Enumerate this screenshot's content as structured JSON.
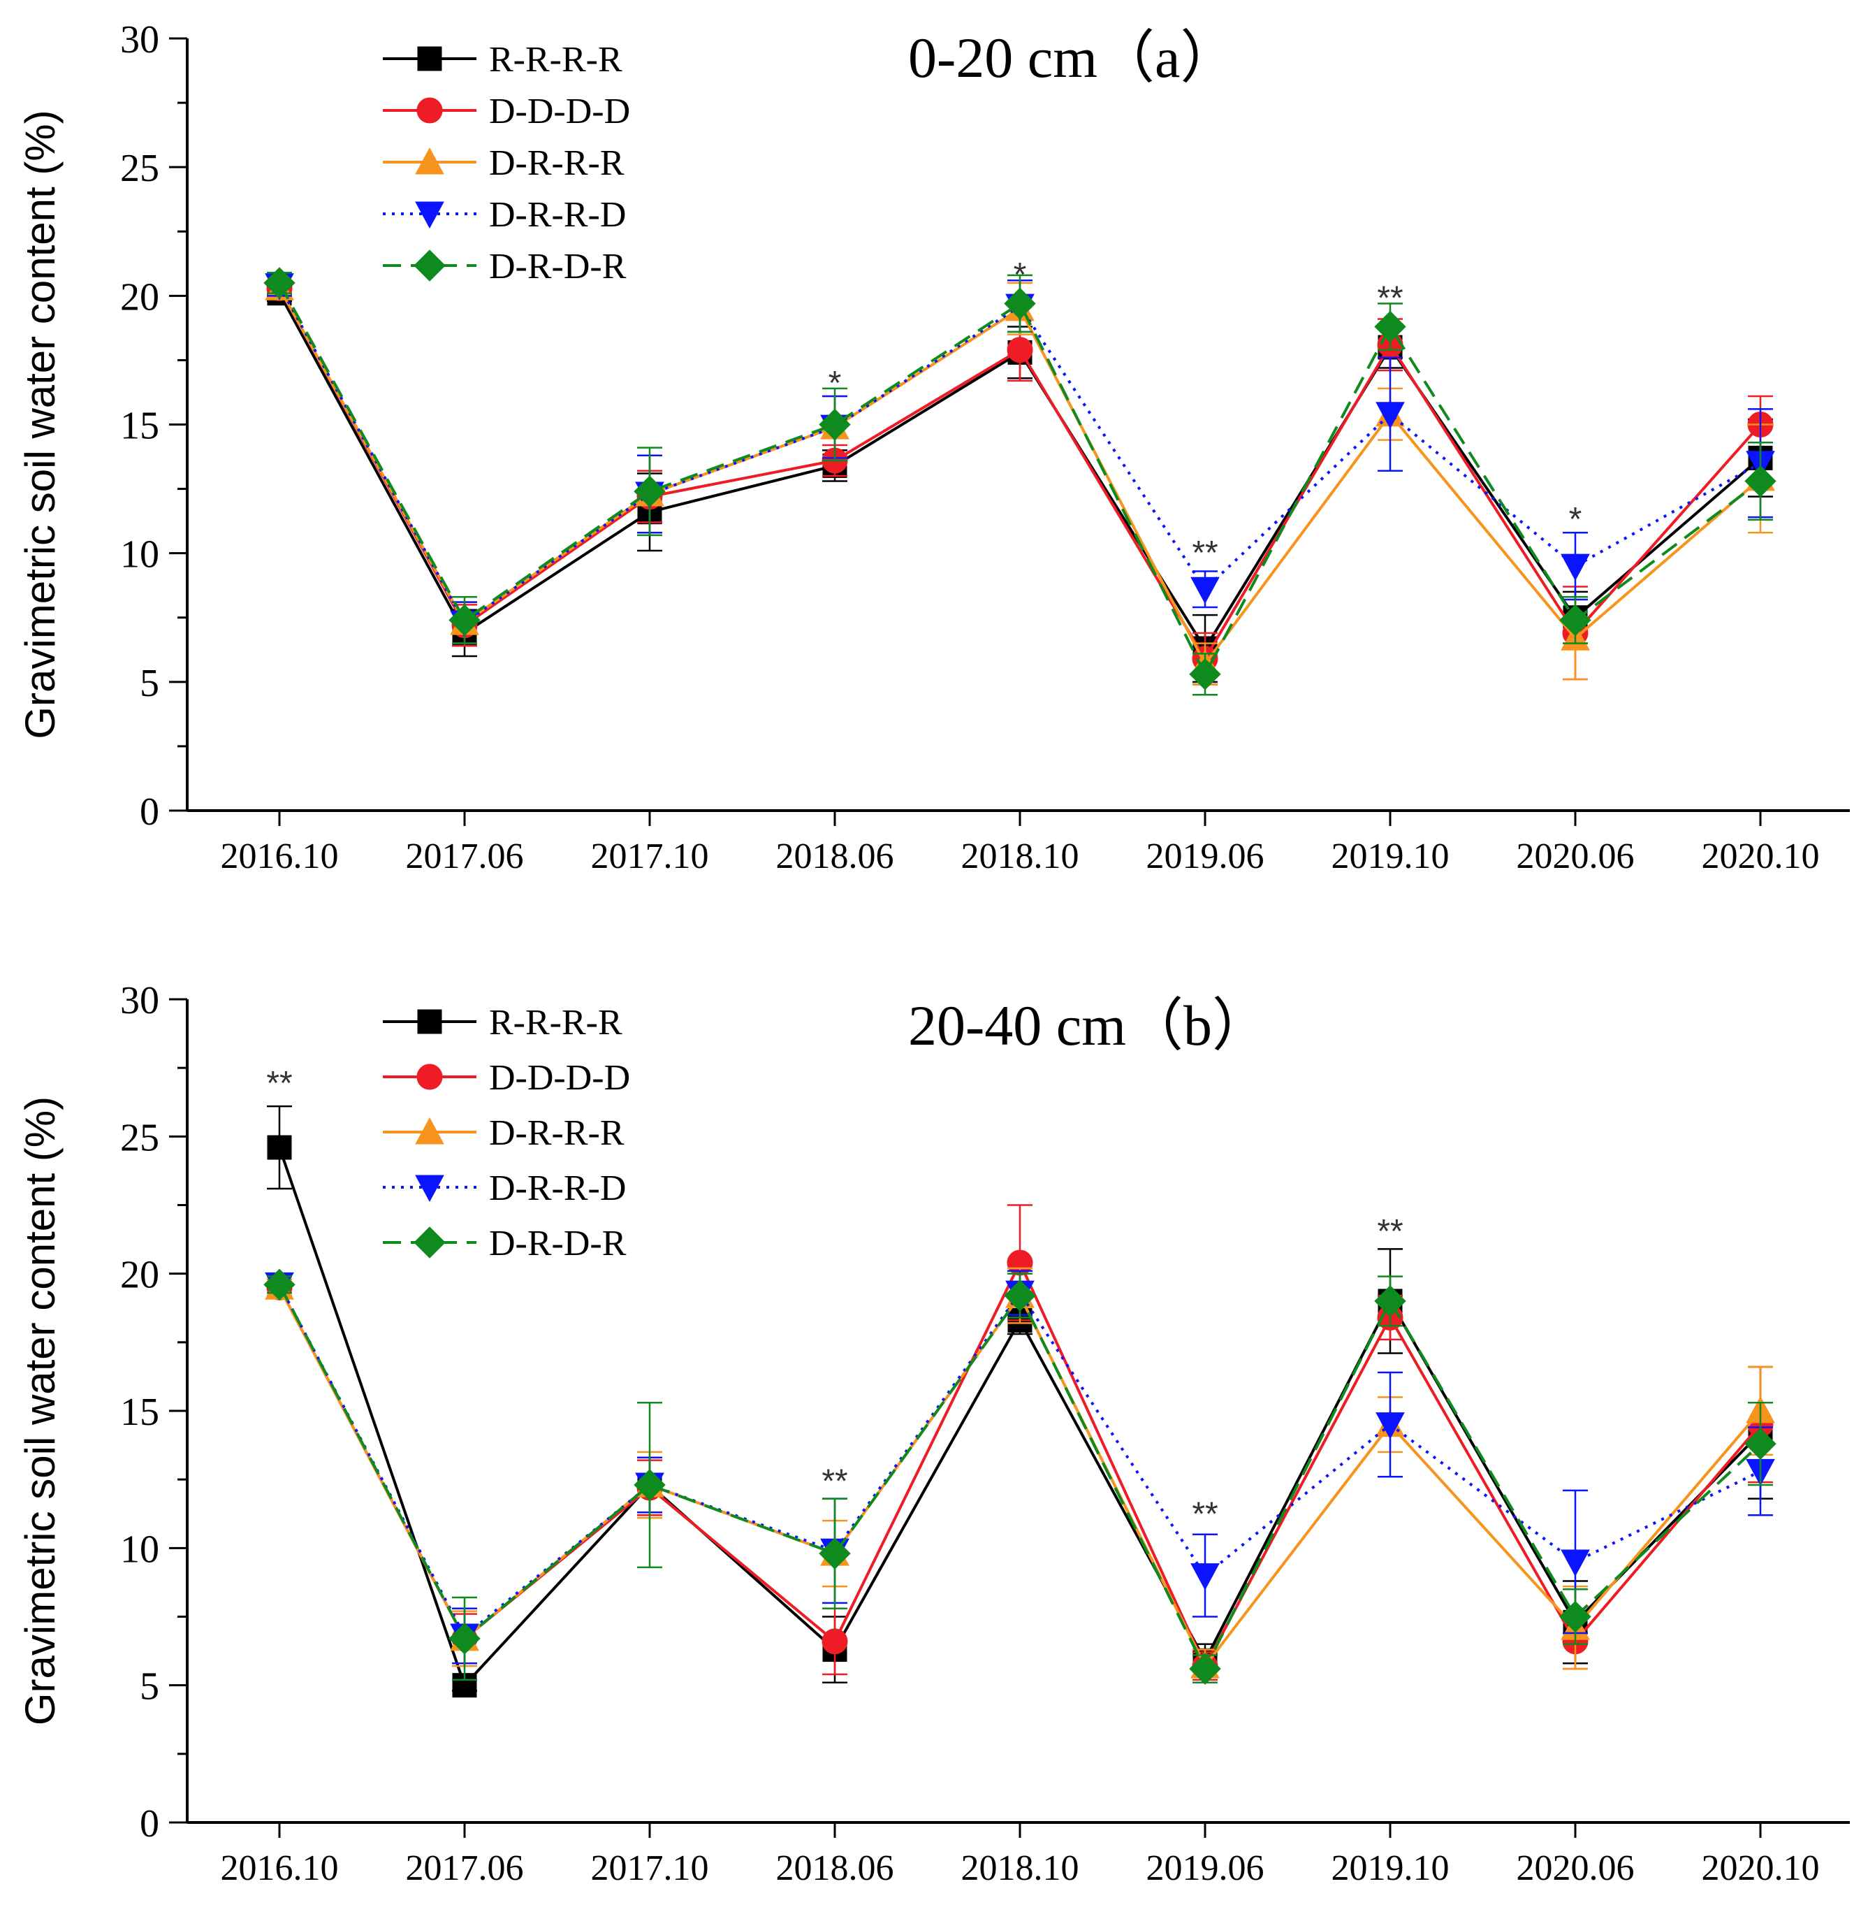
{
  "chart_data": [
    {
      "type": "line",
      "title": "0-20 cm（a）",
      "xlabel": "",
      "ylabel": "Gravimetric soil water content (%)",
      "ylim": [
        0,
        30
      ],
      "yticks": [
        "0",
        "5",
        "10",
        "15",
        "20",
        "25",
        "30"
      ],
      "categories": [
        "2016.10",
        "2017.06",
        "2017.10",
        "2018.06",
        "2018.10",
        "2019.06",
        "2019.10",
        "2020.06",
        "2020.10"
      ],
      "legend_position": "top-left",
      "series": [
        {
          "name": "R-R-R-R",
          "color": "#000000",
          "marker": "square",
          "dash": "solid",
          "values": [
            20.1,
            6.9,
            11.6,
            13.4,
            17.8,
            6.3,
            18.0,
            7.5,
            13.7
          ],
          "errors": [
            0.3,
            0.9,
            1.5,
            0.6,
            1.0,
            1.3,
            0.8,
            1.0,
            1.5
          ]
        },
        {
          "name": "D-D-D-D",
          "color": "#ee1c25",
          "marker": "circle",
          "dash": "solid",
          "values": [
            20.3,
            7.2,
            12.2,
            13.6,
            17.9,
            5.9,
            18.1,
            6.9,
            15.0
          ],
          "errors": [
            0.3,
            0.8,
            1.0,
            0.6,
            1.2,
            1.0,
            1.0,
            1.8,
            1.1
          ]
        },
        {
          "name": "D-R-R-R",
          "color": "#f7941d",
          "marker": "triangle-up",
          "dash": "solid",
          "values": [
            20.3,
            7.3,
            12.3,
            14.9,
            19.5,
            5.7,
            15.4,
            6.7,
            12.9
          ],
          "errors": [
            0.3,
            0.8,
            1.5,
            1.2,
            1.0,
            0.8,
            1.0,
            1.6,
            2.1
          ]
        },
        {
          "name": "D-R-R-D",
          "color": "#0a14ff",
          "marker": "triangle-down",
          "dash": "dotted",
          "values": [
            20.4,
            7.3,
            12.3,
            14.9,
            19.6,
            8.6,
            15.4,
            9.5,
            13.5
          ],
          "errors": [
            0.4,
            0.8,
            1.5,
            1.2,
            1.0,
            0.7,
            2.2,
            1.3,
            2.1
          ]
        },
        {
          "name": "D-R-D-R",
          "color": "#0f8a1e",
          "marker": "diamond",
          "dash": "dashed",
          "values": [
            20.5,
            7.4,
            12.4,
            15.0,
            19.7,
            5.3,
            18.8,
            7.4,
            12.8
          ],
          "errors": [
            0.4,
            0.9,
            1.7,
            1.4,
            1.1,
            0.8,
            0.9,
            0.9,
            1.5
          ]
        }
      ],
      "annotations": [
        {
          "category": "2018.06",
          "text": "*",
          "y": 17.0
        },
        {
          "category": "2018.10",
          "text": "*",
          "y": 21.2
        },
        {
          "category": "2019.06",
          "text": "**",
          "y": 10.4
        },
        {
          "category": "2019.10",
          "text": "**",
          "y": 20.3
        },
        {
          "category": "2020.06",
          "text": "*",
          "y": 11.7
        }
      ]
    },
    {
      "type": "line",
      "title": "20-40 cm（b）",
      "xlabel": "",
      "ylabel": "Gravimetric soil water content (%)",
      "ylim": [
        0,
        30
      ],
      "yticks": [
        "0",
        "5",
        "10",
        "15",
        "20",
        "25",
        "30"
      ],
      "categories": [
        "2016.10",
        "2017.06",
        "2017.10",
        "2018.06",
        "2018.10",
        "2019.06",
        "2019.10",
        "2020.06",
        "2020.10"
      ],
      "legend_position": "top-left",
      "series": [
        {
          "name": "R-R-R-R",
          "color": "#000000",
          "marker": "square",
          "dash": "solid",
          "values": [
            24.6,
            5.0,
            12.3,
            6.3,
            18.3,
            5.9,
            19.0,
            7.3,
            14.2
          ],
          "errors": [
            1.5,
            0.2,
            1.0,
            1.2,
            0.5,
            0.6,
            1.9,
            1.5,
            2.4
          ]
        },
        {
          "name": "D-D-D-D",
          "color": "#ee1c25",
          "marker": "circle",
          "dash": "solid",
          "values": [
            19.5,
            6.7,
            12.2,
            6.6,
            20.4,
            5.7,
            18.4,
            6.6,
            14.5
          ],
          "errors": [
            0.3,
            0.9,
            1.0,
            1.2,
            2.1,
            0.5,
            0.8,
            1.0,
            2.1
          ]
        },
        {
          "name": "D-R-R-R",
          "color": "#f7941d",
          "marker": "triangle-up",
          "dash": "solid",
          "values": [
            19.5,
            6.7,
            12.3,
            9.8,
            19.2,
            5.7,
            14.5,
            7.1,
            15.0
          ],
          "errors": [
            0.3,
            1.0,
            1.2,
            1.2,
            1.0,
            0.6,
            1.0,
            1.5,
            1.6
          ]
        },
        {
          "name": "D-R-R-D",
          "color": "#0a14ff",
          "marker": "triangle-down",
          "dash": "dotted",
          "values": [
            19.6,
            6.8,
            12.3,
            9.9,
            19.3,
            9.0,
            14.5,
            9.5,
            12.8
          ],
          "errors": [
            0.3,
            1.0,
            1.0,
            1.9,
            0.8,
            1.5,
            1.9,
            2.6,
            1.6
          ]
        },
        {
          "name": "D-R-D-R",
          "color": "#0f8a1e",
          "marker": "diamond",
          "dash": "dashed",
          "values": [
            19.6,
            6.7,
            12.3,
            9.8,
            19.2,
            5.6,
            19.0,
            7.5,
            13.8
          ],
          "errors": [
            0.3,
            1.5,
            3.0,
            2.0,
            0.8,
            0.5,
            0.9,
            1.0,
            1.5
          ]
        }
      ],
      "annotations": [
        {
          "category": "2016.10",
          "text": "**",
          "y": 27.3
        },
        {
          "category": "2018.06",
          "text": "**",
          "y": 12.8
        },
        {
          "category": "2019.06",
          "text": "**",
          "y": 11.6
        },
        {
          "category": "2019.10",
          "text": "**",
          "y": 21.9
        }
      ]
    }
  ]
}
